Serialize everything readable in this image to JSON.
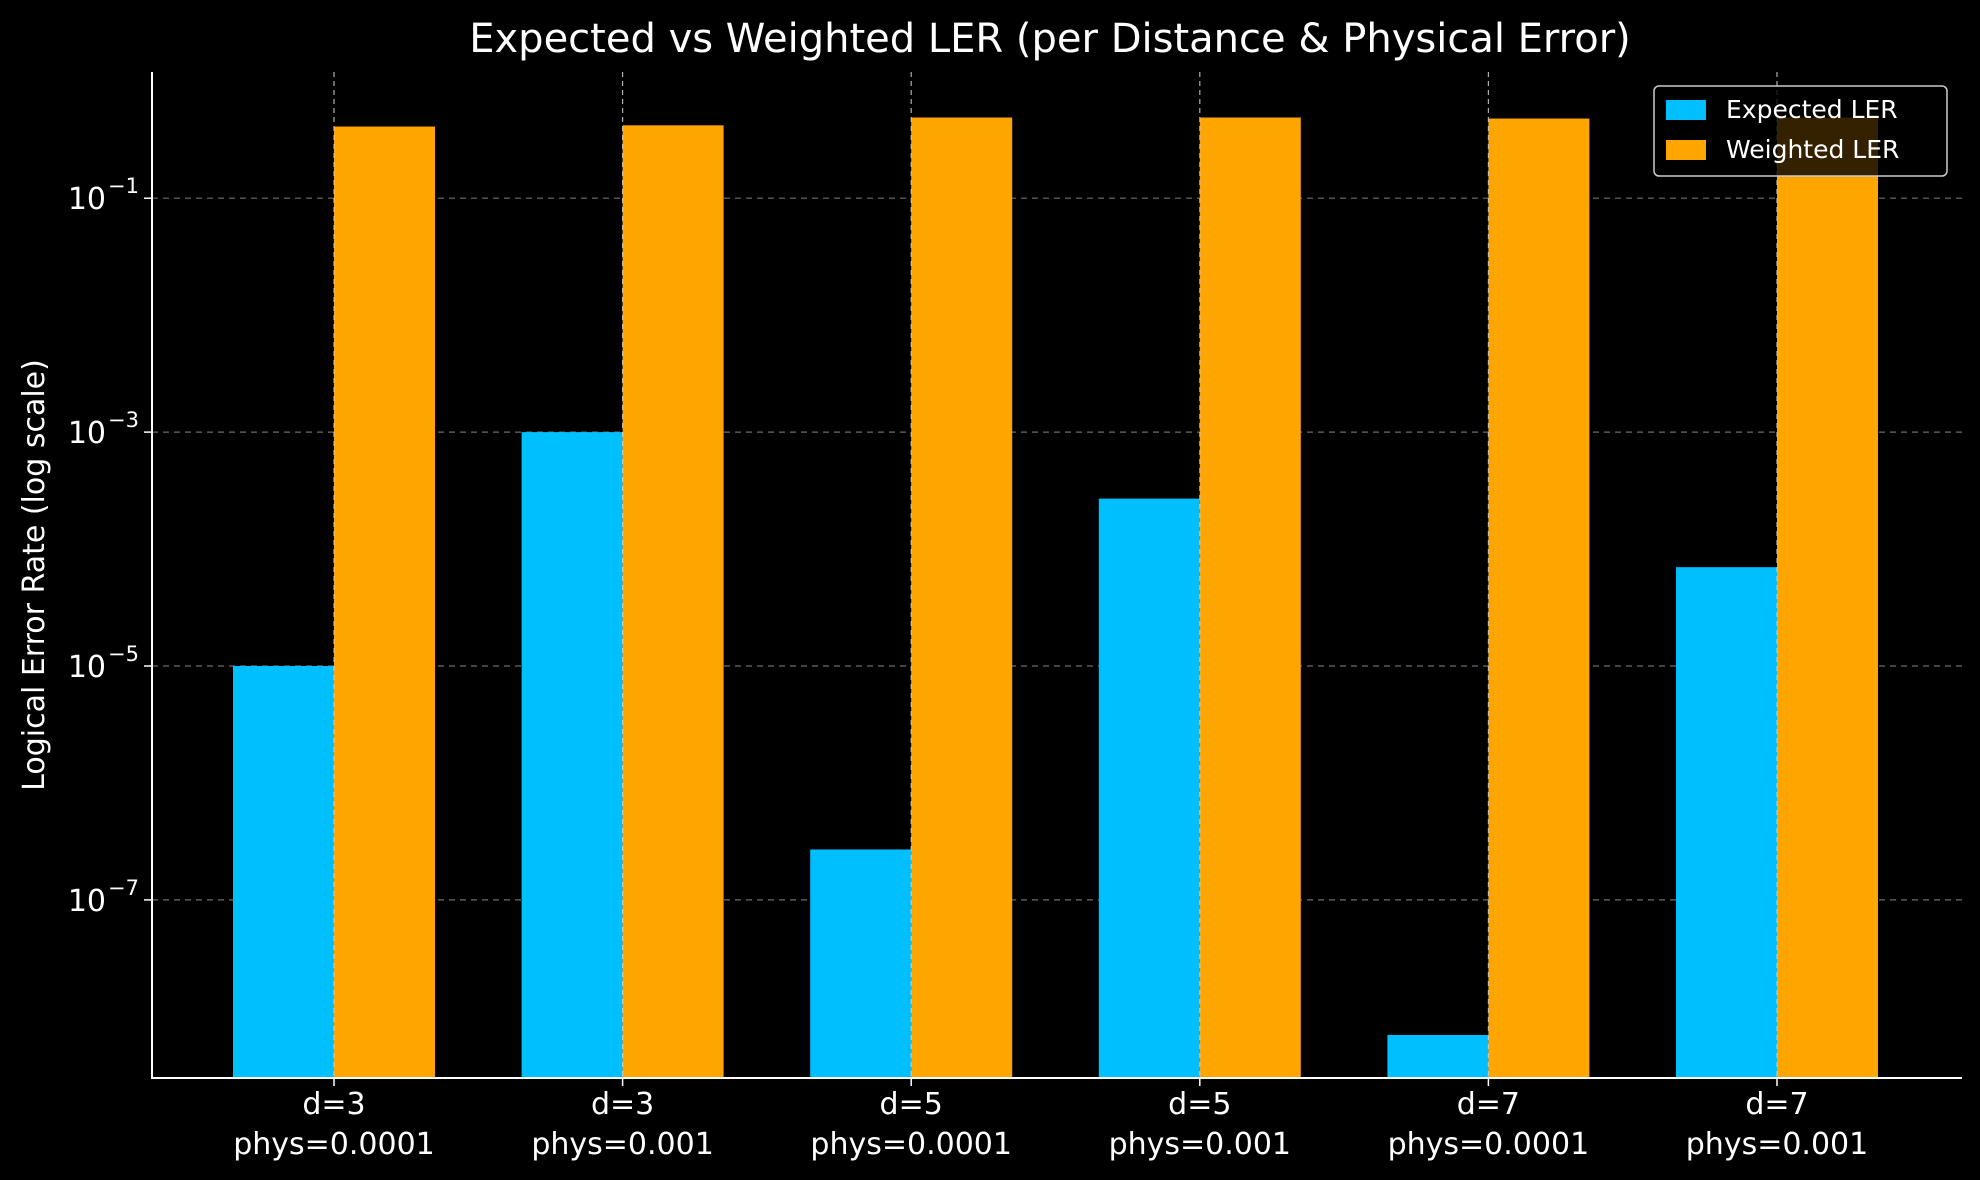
{
  "chart_data": {
    "type": "bar",
    "title": "Expected vs Weighted LER (per Distance & Physical Error)",
    "xlabel": "",
    "ylabel": "Logical Error Rate (log scale)",
    "yscale": "log",
    "ylim": [
      3e-09,
      1.2
    ],
    "yticks": [
      {
        "base": "10",
        "exp": "−1",
        "value": 0.1
      },
      {
        "base": "10",
        "exp": "−3",
        "value": 0.001
      },
      {
        "base": "10",
        "exp": "−5",
        "value": 1e-05
      },
      {
        "base": "10",
        "exp": "−7",
        "value": 1e-07
      }
    ],
    "categories": [
      [
        "d=3",
        "phys=0.0001"
      ],
      [
        "d=3",
        "phys=0.001"
      ],
      [
        "d=5",
        "phys=0.0001"
      ],
      [
        "d=5",
        "phys=0.001"
      ],
      [
        "d=7",
        "phys=0.0001"
      ],
      [
        "d=7",
        "phys=0.001"
      ]
    ],
    "series": [
      {
        "name": "Expected LER",
        "color": "#00bfff",
        "values": [
          1e-05,
          0.001,
          2.7e-07,
          0.00027,
          7e-09,
          7e-05
        ]
      },
      {
        "name": "Weighted LER",
        "color": "#ffa500",
        "values": [
          0.41,
          0.42,
          0.49,
          0.49,
          0.48,
          0.49
        ]
      }
    ],
    "grid": true,
    "legend_position": "top-right"
  }
}
